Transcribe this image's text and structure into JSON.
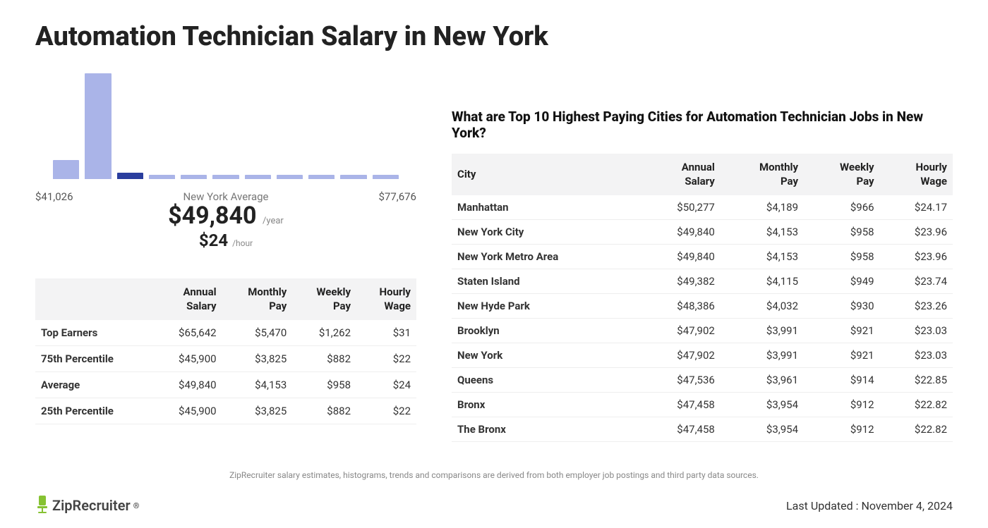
{
  "page_title": "Automation Technician Salary in New York",
  "histogram": {
    "type": "histogram",
    "min_label": "$41,026",
    "max_label": "$77,676",
    "bar_heights_pct": [
      18,
      100,
      6,
      4,
      4,
      4,
      4,
      4,
      4,
      4,
      4
    ],
    "bar_colors": [
      "#aab4e8",
      "#aab4e8",
      "#2a3e9e",
      "#aab4e8",
      "#aab4e8",
      "#aab4e8",
      "#aab4e8",
      "#aab4e8",
      "#aab4e8",
      "#aab4e8",
      "#aab4e8"
    ],
    "avg_caption": "New York Average",
    "avg_annual": "$49,840",
    "avg_annual_unit": "/year",
    "avg_hourly": "$24",
    "avg_hourly_unit": "/hour",
    "label_color": "#555555",
    "background_color": "#ffffff"
  },
  "summary_table": {
    "columns": [
      "",
      "Annual Salary",
      "Monthly Pay",
      "Weekly Pay",
      "Hourly Wage"
    ],
    "rows": [
      [
        "Top Earners",
        "$65,642",
        "$5,470",
        "$1,262",
        "$31"
      ],
      [
        "75th Percentile",
        "$45,900",
        "$3,825",
        "$882",
        "$22"
      ],
      [
        "Average",
        "$49,840",
        "$4,153",
        "$958",
        "$24"
      ],
      [
        "25th Percentile",
        "$45,900",
        "$3,825",
        "$882",
        "$22"
      ]
    ]
  },
  "cities_heading": "What are Top 10 Highest Paying Cities for Automation Technician Jobs in New York?",
  "cities_table": {
    "columns": [
      "City",
      "Annual Salary",
      "Monthly Pay",
      "Weekly Pay",
      "Hourly Wage"
    ],
    "rows": [
      [
        "Manhattan",
        "$50,277",
        "$4,189",
        "$966",
        "$24.17"
      ],
      [
        "New York City",
        "$49,840",
        "$4,153",
        "$958",
        "$23.96"
      ],
      [
        "New York Metro Area",
        "$49,840",
        "$4,153",
        "$958",
        "$23.96"
      ],
      [
        "Staten Island",
        "$49,382",
        "$4,115",
        "$949",
        "$23.74"
      ],
      [
        "New Hyde Park",
        "$48,386",
        "$4,032",
        "$930",
        "$23.26"
      ],
      [
        "Brooklyn",
        "$47,902",
        "$3,991",
        "$921",
        "$23.03"
      ],
      [
        "New York",
        "$47,902",
        "$3,991",
        "$921",
        "$23.03"
      ],
      [
        "Queens",
        "$47,536",
        "$3,961",
        "$914",
        "$22.85"
      ],
      [
        "Bronx",
        "$47,458",
        "$3,954",
        "$912",
        "$22.82"
      ],
      [
        "The Bronx",
        "$47,458",
        "$3,954",
        "$912",
        "$22.82"
      ]
    ]
  },
  "footnote": "ZipRecruiter salary estimates, histograms, trends and comparisons are derived from both employer job postings and third party data sources.",
  "logo_text": "ZipRecruiter",
  "logo_accent_color": "#86c232",
  "last_updated": "Last Updated : November 4, 2024"
}
